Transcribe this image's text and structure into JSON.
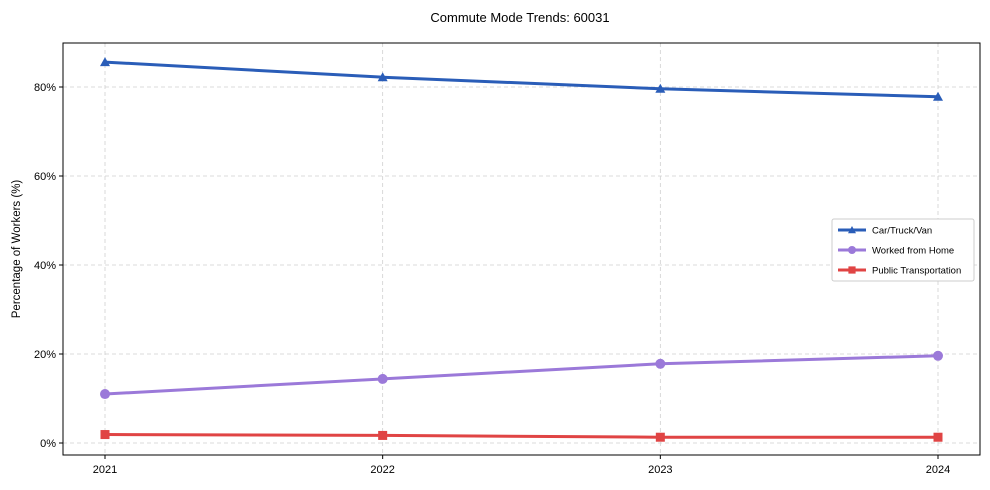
{
  "chart_data": {
    "type": "line",
    "title": "Commute Mode Trends: 60031",
    "xlabel": "",
    "ylabel": "Percentage of Workers (%)",
    "x": [
      "2021",
      "2022",
      "2023",
      "2024"
    ],
    "ylim": [
      -3,
      90
    ],
    "yticks": [
      0,
      20,
      40,
      60,
      80
    ],
    "ytick_labels": [
      "0%",
      "20%",
      "40%",
      "60%",
      "80%"
    ],
    "grid": true,
    "legend_position": "center-right",
    "series": [
      {
        "name": "Car/Truck/Van",
        "color": "#2a5db8",
        "marker": "triangle",
        "values": [
          85.6,
          82.2,
          79.6,
          77.8
        ]
      },
      {
        "name": "Worked from Home",
        "color": "#9b79d9",
        "marker": "circle",
        "values": [
          11.0,
          14.4,
          17.8,
          19.6
        ]
      },
      {
        "name": "Public Transportation",
        "color": "#e04444",
        "marker": "square",
        "values": [
          1.9,
          1.7,
          1.3,
          1.3
        ]
      }
    ]
  }
}
